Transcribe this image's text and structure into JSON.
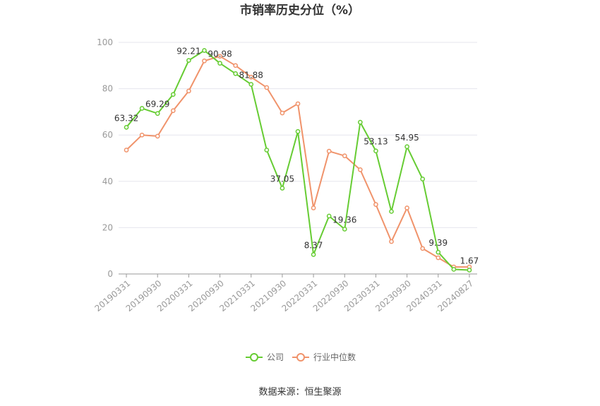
{
  "chart_data": {
    "type": "line",
    "title": "市销率历史分位（%）",
    "ylim": [
      0,
      100
    ],
    "y_ticks": [
      "0",
      "20",
      "40",
      "60",
      "80",
      "100"
    ],
    "x_ticks": [
      "20190331",
      "20190930",
      "20200331",
      "20200930",
      "20210331",
      "20210930",
      "20220331",
      "20220930",
      "20230331",
      "20230930",
      "20240331",
      "20240827"
    ],
    "grid": true,
    "legend_position": "bottom",
    "series": [
      {
        "name": "公司",
        "color": "#66cc33",
        "values": [
          63.32,
          71.5,
          69.29,
          77.5,
          92.21,
          96.5,
          90.98,
          86.5,
          81.88,
          53.5,
          37.05,
          61.5,
          8.37,
          25.0,
          19.36,
          65.5,
          53.13,
          27.0,
          54.95,
          41.0,
          9.39,
          2.0,
          1.67
        ]
      },
      {
        "name": "行业中位数",
        "color": "#f0936b",
        "values": [
          53.5,
          60.0,
          59.5,
          70.5,
          79.0,
          92.0,
          94.0,
          90.0,
          85.0,
          80.5,
          69.5,
          73.5,
          28.5,
          53.0,
          51.0,
          45.0,
          30.0,
          14.0,
          28.5,
          11.0,
          7.0,
          3.0,
          3.0
        ]
      }
    ],
    "data_labels": [
      {
        "series": 0,
        "index": 0,
        "text": "63.32"
      },
      {
        "series": 0,
        "index": 2,
        "text": "69.29"
      },
      {
        "series": 0,
        "index": 4,
        "text": "92.21"
      },
      {
        "series": 0,
        "index": 6,
        "text": "90.98"
      },
      {
        "series": 0,
        "index": 8,
        "text": "81.88"
      },
      {
        "series": 0,
        "index": 10,
        "text": "37.05"
      },
      {
        "series": 0,
        "index": 12,
        "text": "8.37"
      },
      {
        "series": 0,
        "index": 14,
        "text": "19.36"
      },
      {
        "series": 0,
        "index": 16,
        "text": "53.13"
      },
      {
        "series": 0,
        "index": 18,
        "text": "54.95"
      },
      {
        "series": 0,
        "index": 20,
        "text": "9.39"
      },
      {
        "series": 0,
        "index": 22,
        "text": "1.67"
      }
    ]
  },
  "source": "数据来源：恒生聚源"
}
